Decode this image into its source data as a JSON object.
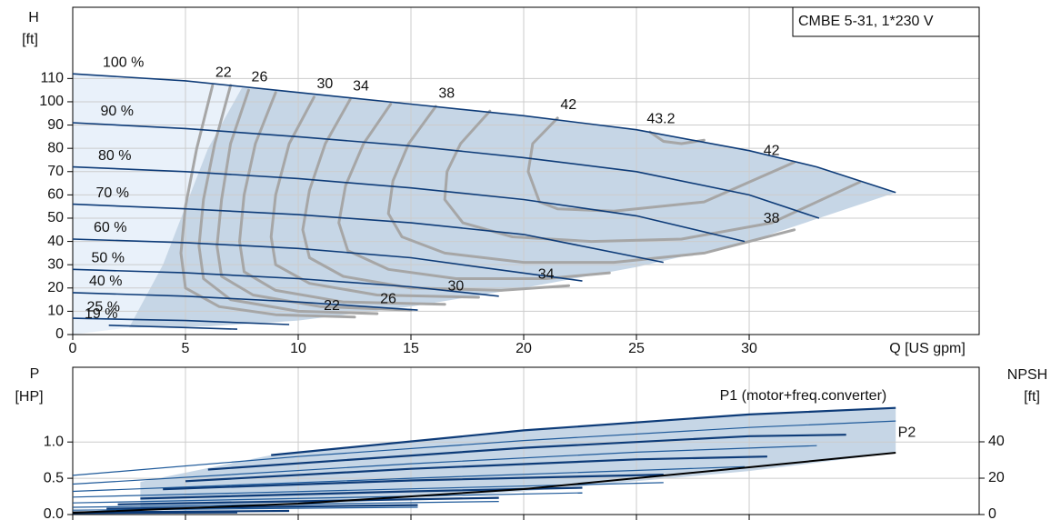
{
  "chart_data": [
    {
      "type": "line",
      "title": "CMBE 5-31, 1*230 V",
      "x_label": "Q [US gpm]",
      "y_label": "H",
      "y_unit": "[ft]",
      "xlim": [
        0,
        40.2
      ],
      "ylim": [
        0,
        140.6
      ],
      "xticks": [
        0,
        5,
        10,
        15,
        20,
        25,
        30
      ],
      "yticks": [
        0,
        10,
        20,
        30,
        40,
        50,
        60,
        70,
        80,
        90,
        100,
        110
      ],
      "grid": true,
      "regions": [
        {
          "color": "#e9f1fa",
          "x": [
            0,
            2.5,
            5,
            7.5,
            6,
            5,
            4,
            3,
            2.5,
            0
          ],
          "values": [
            112,
            110.5,
            108.5,
            106,
            80,
            55,
            30,
            12,
            3,
            0
          ]
        },
        {
          "color": "#c6d6e6",
          "x": [
            7.5,
            10,
            15,
            20,
            25,
            30,
            33,
            36.5,
            30,
            25,
            20,
            15,
            10,
            6,
            2.5,
            3,
            4,
            5,
            6
          ],
          "values": [
            106,
            104,
            99,
            94,
            88,
            79,
            72,
            61,
            40,
            29,
            20,
            12,
            6,
            3.5,
            3,
            12,
            30,
            55,
            80
          ]
        }
      ],
      "series": [
        {
          "name": "100 %",
          "color": "#0d3b78",
          "x": [
            0,
            5,
            10,
            15,
            20,
            25,
            30,
            33,
            36.5
          ],
          "values": [
            112,
            109,
            104,
            99,
            94,
            88,
            79,
            72,
            61
          ]
        },
        {
          "name": "90 %",
          "color": "#0d3b78",
          "x": [
            0,
            5,
            10,
            15,
            20,
            25,
            30,
            33.1
          ],
          "values": [
            91,
            88.5,
            85,
            81,
            76,
            70,
            60,
            50
          ]
        },
        {
          "name": "80 %",
          "color": "#0d3b78",
          "x": [
            0,
            5,
            10,
            15,
            20,
            25,
            29.8
          ],
          "values": [
            72,
            70,
            67,
            63,
            58,
            51,
            40
          ]
        },
        {
          "name": "70 %",
          "color": "#0d3b78",
          "x": [
            0,
            5,
            10,
            15,
            20,
            26.2
          ],
          "values": [
            56,
            54,
            51.5,
            48,
            43,
            31
          ]
        },
        {
          "name": "60 %",
          "color": "#0d3b78",
          "x": [
            0,
            5,
            10,
            15,
            18,
            22.6
          ],
          "values": [
            41,
            39.5,
            37,
            33,
            29,
            23
          ]
        },
        {
          "name": "50 %",
          "color": "#0d3b78",
          "x": [
            0,
            5,
            10,
            15,
            18.9
          ],
          "values": [
            28,
            26.5,
            24,
            20.5,
            16.5
          ]
        },
        {
          "name": "40 %",
          "color": "#0d3b78",
          "x": [
            0,
            5,
            10,
            15.3
          ],
          "values": [
            18,
            16.5,
            14,
            10.5
          ]
        },
        {
          "name": "25 %",
          "color": "#0d3b78",
          "x": [
            0,
            5,
            9.6
          ],
          "values": [
            7,
            6,
            4.3
          ]
        },
        {
          "name": "19 %",
          "color": "#0d3b78",
          "x": [
            1.6,
            5,
            7.3
          ],
          "values": [
            4,
            3,
            2.3
          ]
        }
      ],
      "contours": [
        {
          "name": "22",
          "end_label": true,
          "color": "#a6a6a6",
          "x": [
            6.2,
            5.5,
            5.0,
            4.8,
            5.0,
            6.5,
            9,
            12.5
          ],
          "values": [
            107,
            80,
            55,
            35,
            20,
            12,
            8.5,
            7.5
          ]
        },
        {
          "color": "#a6a6a6",
          "x": [
            7.0,
            6.3,
            5.8,
            5.6,
            5.8,
            7,
            10,
            13.5
          ],
          "values": [
            107,
            82,
            58,
            38,
            24,
            15,
            10,
            9
          ]
        },
        {
          "name": "26",
          "end_label": true,
          "color": "#a6a6a6",
          "x": [
            7.8,
            7.0,
            6.6,
            6.4,
            6.6,
            8,
            11,
            15
          ],
          "values": [
            105,
            82,
            58,
            38,
            25,
            17,
            12,
            10.5
          ]
        },
        {
          "color": "#a6a6a6",
          "x": [
            9.0,
            8.1,
            7.6,
            7.4,
            7.6,
            9,
            12,
            16.5
          ],
          "values": [
            104,
            82,
            60,
            40,
            27,
            19,
            14,
            13
          ]
        },
        {
          "name": "30",
          "end_label": true,
          "color": "#a6a6a6",
          "x": [
            10.7,
            9.6,
            9.0,
            8.8,
            9.0,
            10.5,
            13.5,
            18
          ],
          "values": [
            102,
            82,
            60,
            42,
            30,
            22,
            17,
            16
          ]
        },
        {
          "name": "34",
          "end_label": true,
          "color": "#a6a6a6",
          "x": [
            12.3,
            11.2,
            10.5,
            10.2,
            10.5,
            12,
            15,
            19,
            22
          ],
          "values": [
            101,
            82,
            62,
            45,
            33,
            25,
            20,
            19,
            21
          ]
        },
        {
          "color": "#a6a6a6",
          "x": [
            14.1,
            12.9,
            12.1,
            11.8,
            12.2,
            14,
            17,
            21,
            23.8
          ],
          "values": [
            99,
            82,
            64,
            48,
            36,
            28,
            24,
            24,
            26.5
          ]
        },
        {
          "name": "38",
          "end_label": true,
          "color": "#a6a6a6",
          "x": [
            16.1,
            14.9,
            14.2,
            14.0,
            14.6,
            16.5,
            20,
            24,
            28,
            32
          ],
          "values": [
            98,
            82,
            66,
            52,
            42,
            35,
            31,
            31,
            35,
            45
          ]
        },
        {
          "color": "#a6a6a6",
          "x": [
            18.5,
            17.2,
            16.6,
            16.5,
            17.3,
            19.5,
            23,
            27,
            31,
            34.9
          ],
          "values": [
            96,
            82,
            70,
            58,
            48,
            42,
            40,
            41,
            48,
            65.5
          ]
        },
        {
          "name": "42",
          "end_label": true,
          "color": "#a6a6a6",
          "x": [
            21.5,
            20.4,
            20.2,
            20.7,
            21.5,
            24,
            28,
            32
          ],
          "values": [
            93,
            82,
            70,
            57,
            54,
            53,
            57,
            74
          ]
        },
        {
          "name": "43.2",
          "color": "#a6a6a6",
          "x": [
            25.6,
            26.2,
            27,
            28
          ],
          "values": [
            87,
            83,
            82,
            83.5
          ]
        }
      ]
    },
    {
      "type": "line",
      "y_label": "P",
      "y_unit": "[HP]",
      "y2_label": "NPSH",
      "y2_unit": "[ft]",
      "xlim": [
        0,
        40.2
      ],
      "ylim": [
        0,
        2.03
      ],
      "y2lim": [
        0,
        81
      ],
      "grid": true,
      "yticks": [
        {
          "value": 0,
          "label": "0.0"
        },
        0.5,
        {
          "value": 1,
          "label": "1.0"
        }
      ],
      "y2ticks": [
        0,
        20,
        40
      ],
      "regions": [
        {
          "color": "#c6d6e6",
          "x": [
            3,
            8.8,
            20,
            30,
            36.5,
            36.5,
            30,
            20,
            10,
            5,
            3
          ],
          "values": [
            0.45,
            0.82,
            1.16,
            1.38,
            1.47,
            0.85,
            0.6,
            0.32,
            0.12,
            0.06,
            0.1
          ]
        }
      ],
      "series": [
        {
          "name": "P1 (motor+freq.converter)",
          "color": "#0d3b78",
          "width": 2.2,
          "x": [
            8.8,
            20,
            30,
            36.5
          ],
          "values": [
            0.82,
            1.16,
            1.38,
            1.47
          ]
        },
        {
          "name": "P2",
          "color": "#1f5a9a",
          "width": 1.2,
          "x": [
            0,
            10,
            20,
            30,
            36.5
          ],
          "values": [
            0.54,
            0.8,
            1.02,
            1.2,
            1.29
          ]
        },
        {
          "color": "#0d3b78",
          "width": 2.2,
          "x": [
            6,
            20,
            30,
            34.3
          ],
          "values": [
            0.62,
            0.92,
            1.08,
            1.1
          ]
        },
        {
          "color": "#1f5a9a",
          "width": 1.2,
          "x": [
            0,
            15,
            25,
            33
          ],
          "values": [
            0.42,
            0.7,
            0.86,
            0.95
          ]
        },
        {
          "color": "#0d3b78",
          "width": 2.2,
          "x": [
            5,
            15,
            25,
            30.8
          ],
          "values": [
            0.46,
            0.63,
            0.76,
            0.8
          ]
        },
        {
          "color": "#1f5a9a",
          "width": 1.2,
          "x": [
            0,
            15,
            29.8
          ],
          "values": [
            0.32,
            0.5,
            0.66
          ]
        },
        {
          "color": "#0d3b78",
          "width": 2.2,
          "x": [
            4,
            15,
            26.2
          ],
          "values": [
            0.35,
            0.47,
            0.55
          ]
        },
        {
          "color": "#1f5a9a",
          "width": 1.2,
          "x": [
            0,
            26.2
          ],
          "values": [
            0.24,
            0.44
          ]
        },
        {
          "color": "#0d3b78",
          "width": 2.2,
          "x": [
            3,
            15,
            22.6
          ],
          "values": [
            0.22,
            0.32,
            0.37
          ]
        },
        {
          "color": "#1f5a9a",
          "width": 1.2,
          "x": [
            0,
            22.6
          ],
          "values": [
            0.16,
            0.3
          ]
        },
        {
          "color": "#0d3b78",
          "width": 2.2,
          "x": [
            2,
            18.9
          ],
          "values": [
            0.14,
            0.23
          ]
        },
        {
          "color": "#1f5a9a",
          "width": 1.2,
          "x": [
            0,
            18.9
          ],
          "values": [
            0.1,
            0.18
          ]
        },
        {
          "color": "#0d3b78",
          "width": 2.2,
          "x": [
            1.5,
            15.3
          ],
          "values": [
            0.08,
            0.13
          ]
        },
        {
          "color": "#1f5a9a",
          "width": 1.2,
          "x": [
            0,
            15.3
          ],
          "values": [
            0.06,
            0.1
          ]
        },
        {
          "color": "#0d3b78",
          "width": 2.2,
          "x": [
            0,
            9.6
          ],
          "values": [
            0.03,
            0.05
          ]
        },
        {
          "color": "#0d3b78",
          "width": 2.2,
          "x": [
            0,
            7.3
          ],
          "values": [
            0.02,
            0.03
          ]
        },
        {
          "color": "#000000",
          "width": 2,
          "axis": "y2",
          "x": [
            0,
            10,
            20,
            30,
            36.5
          ],
          "values": [
            1,
            6,
            14,
            26,
            34
          ]
        }
      ]
    }
  ]
}
